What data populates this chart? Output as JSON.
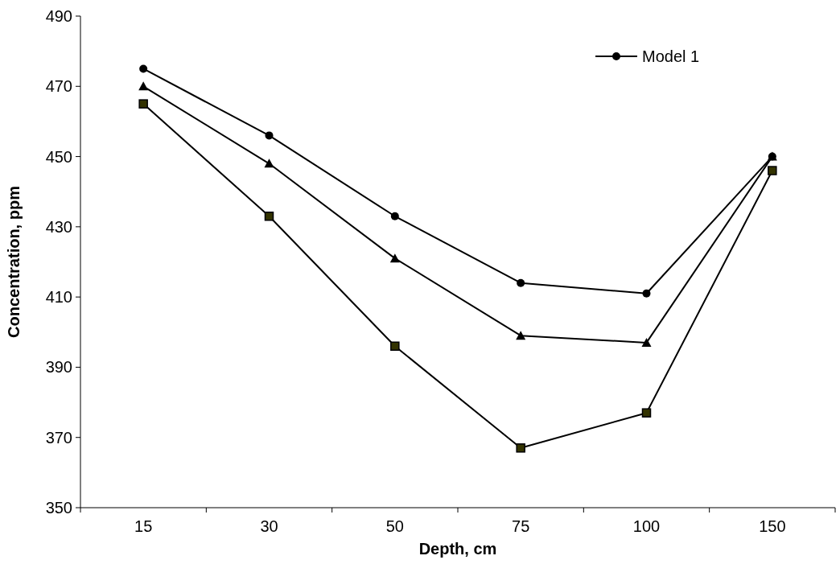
{
  "chart_data": {
    "type": "line",
    "xlabel": "Depth, cm",
    "ylabel": "Concentration, ppm",
    "categories": [
      "15",
      "30",
      "50",
      "75",
      "100",
      "150"
    ],
    "ylim": [
      350,
      490
    ],
    "yticks": [
      350,
      370,
      390,
      410,
      430,
      450,
      470,
      490
    ],
    "grid": false,
    "legend": "top right",
    "line_style": "solid",
    "series": [
      {
        "name": "Model 1",
        "color": "#000000",
        "marker": "circle",
        "values": [
          475,
          456,
          433,
          414,
          411,
          450
        ]
      },
      {
        "color": "#000000",
        "marker": "triangle",
        "values": [
          470,
          448,
          421,
          399,
          397,
          450
        ]
      },
      {
        "color": "#000000",
        "marker": "square",
        "values": [
          465,
          433,
          396,
          367,
          377,
          446
        ]
      }
    ]
  }
}
